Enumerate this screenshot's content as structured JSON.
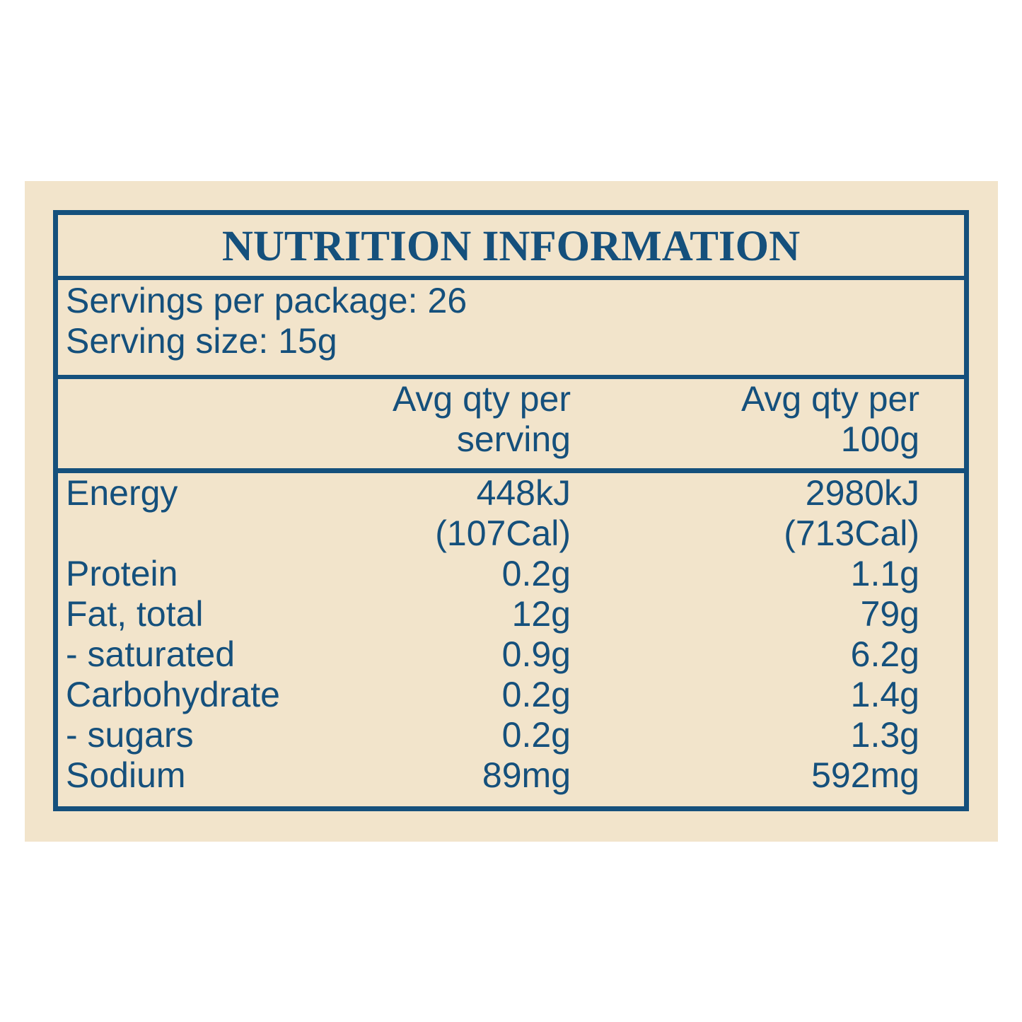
{
  "colors": {
    "navy": "#15507C",
    "panel_background": "#F2E4CB",
    "page_background": "#FFFFFF"
  },
  "label": {
    "title": "NUTRITION INFORMATION",
    "serving_info": [
      {
        "label": "Servings per package:",
        "value": "26"
      },
      {
        "label": "Serving size:",
        "value": "15g"
      }
    ],
    "columns": [
      {
        "line1": "Avg qty per",
        "line2": "serving"
      },
      {
        "line1": "Avg qty per",
        "line2": "100g"
      }
    ],
    "rows": [
      {
        "label": "Energy",
        "per_serving": "448kJ",
        "per_100g": "2980kJ"
      },
      {
        "label": "",
        "per_serving": "(107Cal)",
        "per_100g": "(713Cal)"
      },
      {
        "label": "Protein",
        "per_serving": "0.2g",
        "per_100g": "1.1g"
      },
      {
        "label": "Fat, total",
        "per_serving": "12g",
        "per_100g": "79g"
      },
      {
        "label": "- saturated",
        "per_serving": "0.9g",
        "per_100g": "6.2g"
      },
      {
        "label": "Carbohydrate",
        "per_serving": "0.2g",
        "per_100g": "1.4g"
      },
      {
        "label": "- sugars",
        "per_serving": "0.2g",
        "per_100g": "1.3g"
      },
      {
        "label": "Sodium",
        "per_serving": "89mg",
        "per_100g": "592mg"
      }
    ]
  }
}
